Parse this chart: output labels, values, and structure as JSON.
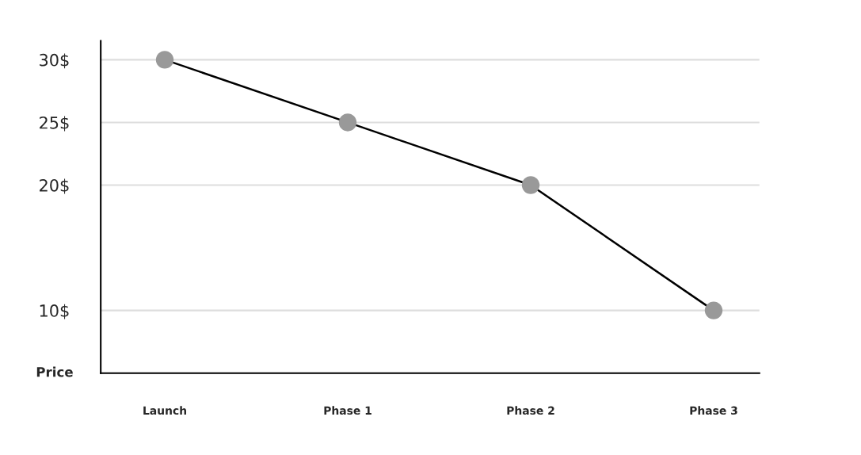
{
  "chart_data": {
    "type": "line",
    "ylabel": "Price",
    "categories": [
      "Launch",
      "Phase 1",
      "Phase 2",
      "Phase 3"
    ],
    "series": [
      {
        "color": "#000000",
        "colors": [
          "#999999",
          "#999999",
          "#999999",
          "#999999"
        ],
        "values": [
          30,
          25,
          20,
          10
        ]
      }
    ],
    "ylim": [
      5,
      31.5
    ],
    "yticks": [
      {
        "value": 30,
        "label": "30$"
      },
      {
        "value": 25,
        "label": "25$"
      },
      {
        "value": 20,
        "label": "20$"
      },
      {
        "value": 10,
        "label": "10$"
      }
    ],
    "grid": "y",
    "marker": "circle",
    "line_style": "solid"
  }
}
